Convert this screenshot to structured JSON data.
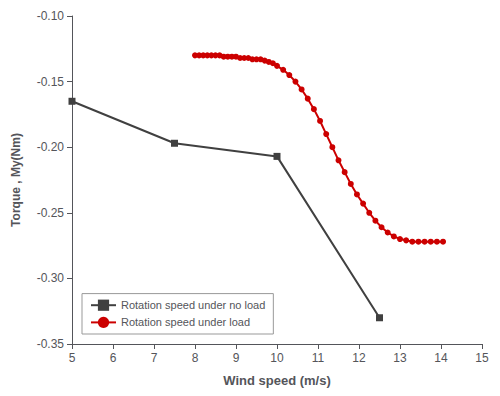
{
  "chart_data": {
    "type": "line",
    "xlabel": "Wind speed (m/s)",
    "ylabel": "Torque , My(Nm)",
    "xlim": [
      5,
      15
    ],
    "ylim": [
      -0.35,
      -0.1
    ],
    "xticks": [
      5,
      6,
      7,
      8,
      9,
      10,
      11,
      12,
      13,
      14,
      15
    ],
    "yticks": [
      -0.35,
      {
        "value": -0.3,
        "label": "-0.30"
      },
      -0.25,
      {
        "value": -0.2,
        "label": "-0.20"
      },
      -0.15,
      {
        "value": -0.1,
        "label": "-0.10"
      }
    ],
    "grid": false,
    "legend": "lower left",
    "series": [
      {
        "name": "Rotation speed under no load",
        "color": "#404040",
        "marker": "square",
        "x": [
          5.0,
          7.5,
          10.0,
          12.5
        ],
        "values": [
          -0.165,
          -0.197,
          -0.207,
          -0.33
        ]
      },
      {
        "name": "Rotation speed under load",
        "color": "#cc0000",
        "marker": "circle",
        "x": [
          8.0,
          8.1,
          8.2,
          8.3,
          8.4,
          8.5,
          8.6,
          8.7,
          8.8,
          8.9,
          9.0,
          9.1,
          9.2,
          9.3,
          9.4,
          9.5,
          9.6,
          9.7,
          9.8,
          9.9,
          10.0,
          10.15,
          10.3,
          10.45,
          10.6,
          10.75,
          10.9,
          11.05,
          11.2,
          11.35,
          11.5,
          11.65,
          11.8,
          11.95,
          12.1,
          12.25,
          12.4,
          12.55,
          12.7,
          12.85,
          13.0,
          13.15,
          13.3,
          13.45,
          13.6,
          13.75,
          13.9,
          14.05
        ],
        "values": [
          -0.13,
          -0.13,
          -0.13,
          -0.13,
          -0.13,
          -0.13,
          -0.13,
          -0.131,
          -0.131,
          -0.131,
          -0.131,
          -0.132,
          -0.132,
          -0.132,
          -0.133,
          -0.133,
          -0.133,
          -0.134,
          -0.135,
          -0.136,
          -0.138,
          -0.141,
          -0.145,
          -0.15,
          -0.156,
          -0.163,
          -0.171,
          -0.18,
          -0.19,
          -0.2,
          -0.21,
          -0.219,
          -0.228,
          -0.236,
          -0.243,
          -0.25,
          -0.256,
          -0.261,
          -0.265,
          -0.268,
          -0.27,
          -0.271,
          -0.272,
          -0.272,
          -0.272,
          -0.272,
          -0.272,
          -0.272
        ]
      }
    ]
  }
}
